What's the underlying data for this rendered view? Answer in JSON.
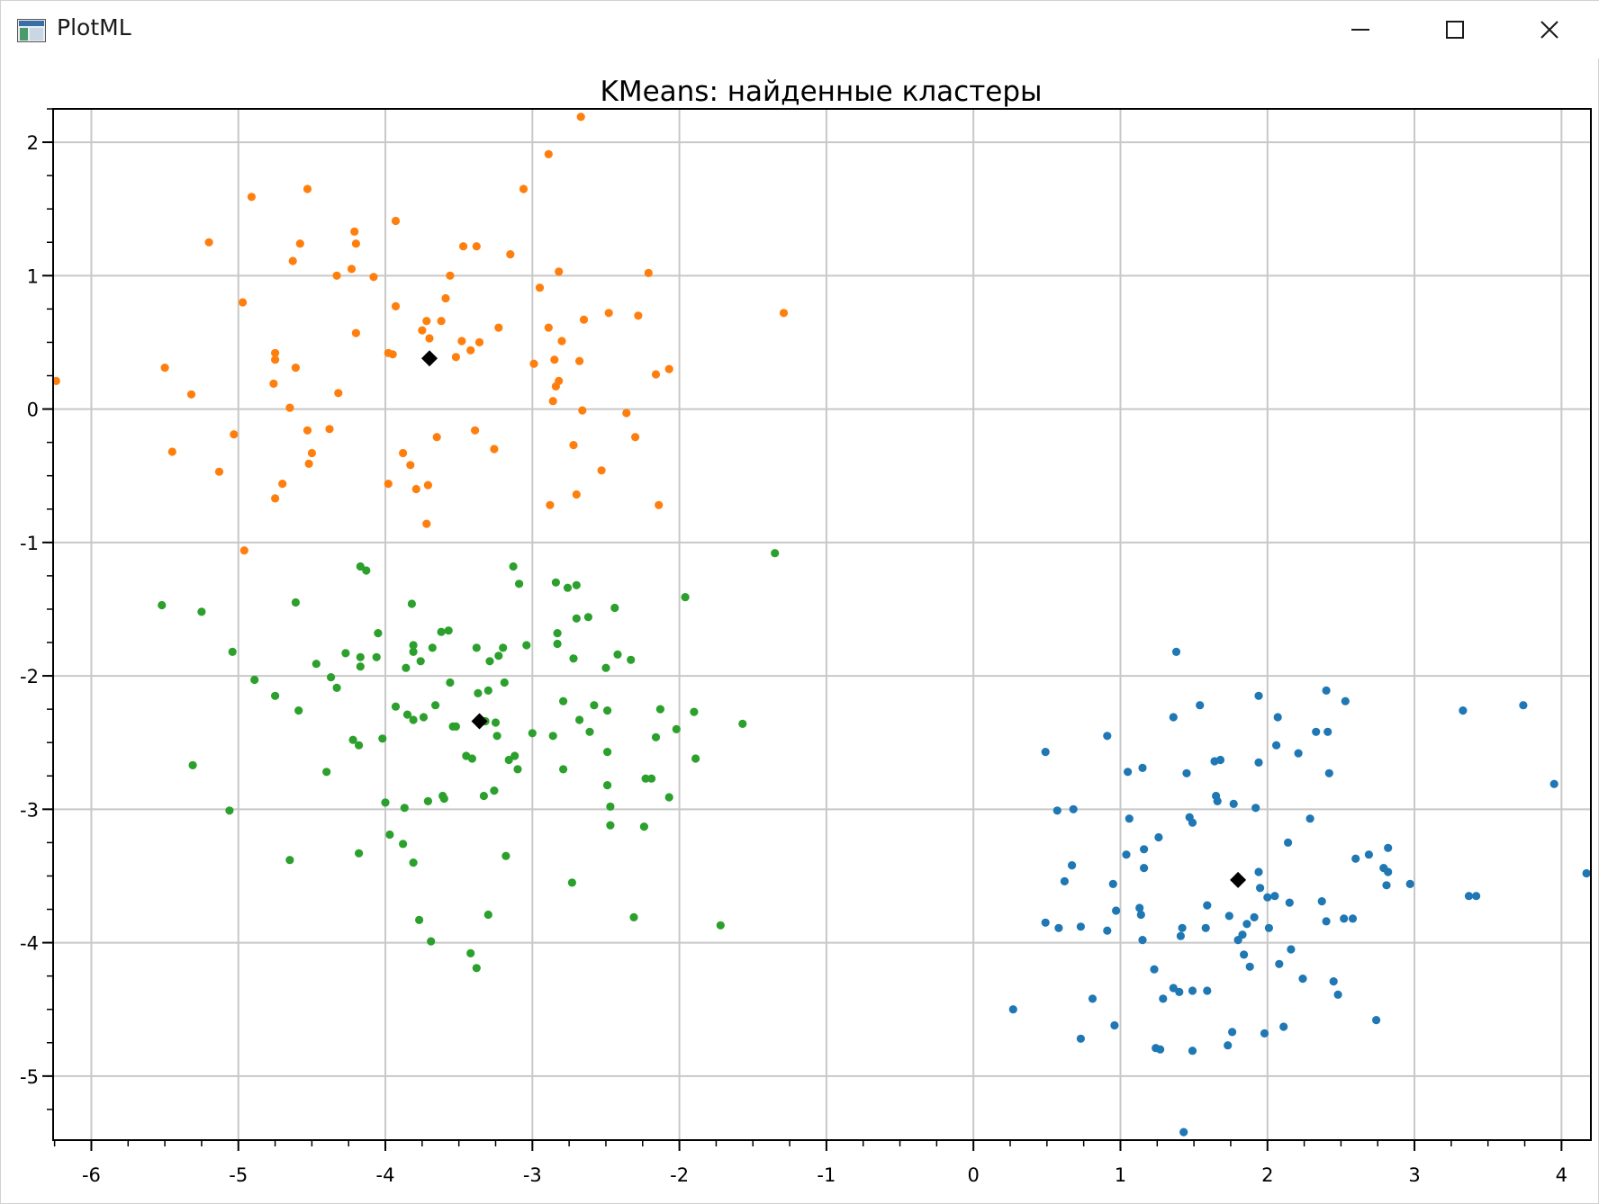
{
  "window": {
    "title": "PlotML",
    "icon": "chart-app-icon"
  },
  "controls": {
    "minimize": "minimize-icon",
    "maximize": "maximize-icon",
    "close": "close-icon"
  },
  "chart_data": {
    "type": "scatter",
    "title": "KMeans: найденные кластеры",
    "xlabel": "",
    "ylabel": "",
    "xlim": [
      -6.26,
      4.2
    ],
    "ylim": [
      -5.48,
      2.25
    ],
    "xticks": [
      -6,
      -5,
      -4,
      -3,
      -2,
      -1,
      0,
      1,
      2,
      3,
      4
    ],
    "yticks": [
      2,
      1,
      0,
      -1,
      -2,
      -3,
      -4,
      -5
    ],
    "grid": true,
    "legend": "none",
    "colors": {
      "blue": "#1f77b4",
      "orange": "#ff7f0e",
      "green": "#2ca02c",
      "centroid": "#000000"
    },
    "series": [
      {
        "color": "#1f77b4",
        "points": [
          [
            0.27,
            -4.5
          ],
          [
            0.49,
            -2.57
          ],
          [
            0.49,
            -3.85
          ],
          [
            0.57,
            -3.01
          ],
          [
            0.58,
            -3.89
          ],
          [
            0.62,
            -3.54
          ],
          [
            0.67,
            -3.42
          ],
          [
            0.68,
            -3.0
          ],
          [
            0.73,
            -4.72
          ],
          [
            0.73,
            -3.88
          ],
          [
            0.81,
            -4.42
          ],
          [
            0.91,
            -2.45
          ],
          [
            0.91,
            -3.91
          ],
          [
            0.95,
            -3.56
          ],
          [
            0.96,
            -4.62
          ],
          [
            0.97,
            -3.76
          ],
          [
            1.04,
            -3.34
          ],
          [
            1.05,
            -2.72
          ],
          [
            1.06,
            -3.07
          ],
          [
            1.13,
            -3.74
          ],
          [
            1.14,
            -3.79
          ],
          [
            1.15,
            -2.69
          ],
          [
            1.15,
            -3.98
          ],
          [
            1.16,
            -3.44
          ],
          [
            1.16,
            -3.3
          ],
          [
            1.23,
            -4.2
          ],
          [
            1.24,
            -4.79
          ],
          [
            1.26,
            -3.21
          ],
          [
            1.27,
            -4.8
          ],
          [
            1.29,
            -4.42
          ],
          [
            1.36,
            -4.34
          ],
          [
            1.36,
            -2.31
          ],
          [
            1.38,
            -1.82
          ],
          [
            1.4,
            -4.37
          ],
          [
            1.41,
            -3.95
          ],
          [
            1.42,
            -3.89
          ],
          [
            1.43,
            -5.42
          ],
          [
            1.45,
            -2.73
          ],
          [
            1.47,
            -3.06
          ],
          [
            1.49,
            -4.81
          ],
          [
            1.49,
            -3.1
          ],
          [
            1.49,
            -4.36
          ],
          [
            1.54,
            -2.22
          ],
          [
            1.58,
            -3.89
          ],
          [
            1.59,
            -3.72
          ],
          [
            1.59,
            -4.36
          ],
          [
            1.64,
            -2.64
          ],
          [
            1.65,
            -2.9
          ],
          [
            1.66,
            -2.94
          ],
          [
            1.68,
            -2.63
          ],
          [
            1.73,
            -4.77
          ],
          [
            1.74,
            -3.8
          ],
          [
            1.76,
            -4.67
          ],
          [
            1.77,
            -2.96
          ],
          [
            1.8,
            -3.98
          ],
          [
            1.83,
            -3.94
          ],
          [
            1.84,
            -4.09
          ],
          [
            1.86,
            -3.86
          ],
          [
            1.88,
            -4.18
          ],
          [
            1.91,
            -3.81
          ],
          [
            1.92,
            -2.99
          ],
          [
            1.94,
            -2.15
          ],
          [
            1.94,
            -2.65
          ],
          [
            1.94,
            -3.47
          ],
          [
            1.95,
            -3.59
          ],
          [
            1.98,
            -4.68
          ],
          [
            2.0,
            -3.66
          ],
          [
            2.01,
            -3.89
          ],
          [
            2.05,
            -3.65
          ],
          [
            2.06,
            -2.52
          ],
          [
            2.07,
            -2.31
          ],
          [
            2.08,
            -4.16
          ],
          [
            2.11,
            -4.63
          ],
          [
            2.14,
            -3.25
          ],
          [
            2.15,
            -3.7
          ],
          [
            2.16,
            -4.05
          ],
          [
            2.21,
            -2.58
          ],
          [
            2.24,
            -4.27
          ],
          [
            2.29,
            -3.07
          ],
          [
            2.33,
            -2.42
          ],
          [
            2.37,
            -3.69
          ],
          [
            2.4,
            -3.84
          ],
          [
            2.4,
            -2.11
          ],
          [
            2.41,
            -2.42
          ],
          [
            2.42,
            -2.73
          ],
          [
            2.45,
            -4.29
          ],
          [
            2.48,
            -4.39
          ],
          [
            2.52,
            -3.82
          ],
          [
            2.53,
            -2.19
          ],
          [
            2.58,
            -3.82
          ],
          [
            2.6,
            -3.37
          ],
          [
            2.69,
            -3.34
          ],
          [
            2.74,
            -4.58
          ],
          [
            2.79,
            -3.44
          ],
          [
            2.82,
            -3.47
          ],
          [
            2.82,
            -3.29
          ],
          [
            2.81,
            -3.57
          ],
          [
            2.97,
            -3.56
          ],
          [
            3.33,
            -2.26
          ],
          [
            3.37,
            -3.65
          ],
          [
            3.42,
            -3.65
          ],
          [
            3.74,
            -2.22
          ],
          [
            3.95,
            -2.81
          ],
          [
            4.17,
            -3.48
          ]
        ]
      },
      {
        "color": "#ff7f0e",
        "points": [
          [
            -6.24,
            0.21
          ],
          [
            -5.5,
            0.31
          ],
          [
            -5.45,
            -0.32
          ],
          [
            -5.32,
            0.11
          ],
          [
            -5.2,
            1.25
          ],
          [
            -5.13,
            -0.47
          ],
          [
            -5.03,
            -0.19
          ],
          [
            -4.97,
            0.8
          ],
          [
            -4.96,
            -1.06
          ],
          [
            -4.91,
            1.59
          ],
          [
            -4.76,
            0.19
          ],
          [
            -4.75,
            0.42
          ],
          [
            -4.75,
            0.37
          ],
          [
            -4.75,
            -0.67
          ],
          [
            -4.7,
            -0.56
          ],
          [
            -4.65,
            0.01
          ],
          [
            -4.63,
            1.11
          ],
          [
            -4.61,
            0.31
          ],
          [
            -4.58,
            1.24
          ],
          [
            -4.53,
            -0.16
          ],
          [
            -4.53,
            1.65
          ],
          [
            -4.52,
            -0.41
          ],
          [
            -4.5,
            -0.33
          ],
          [
            -4.38,
            -0.15
          ],
          [
            -4.33,
            1.0
          ],
          [
            -4.32,
            0.12
          ],
          [
            -4.23,
            1.05
          ],
          [
            -4.21,
            1.33
          ],
          [
            -4.2,
            0.57
          ],
          [
            -4.2,
            1.24
          ],
          [
            -4.08,
            0.99
          ],
          [
            -3.98,
            -0.56
          ],
          [
            -3.98,
            0.42
          ],
          [
            -3.95,
            0.41
          ],
          [
            -3.93,
            0.77
          ],
          [
            -3.93,
            1.41
          ],
          [
            -3.88,
            -0.33
          ],
          [
            -3.83,
            -0.42
          ],
          [
            -3.79,
            -0.6
          ],
          [
            -3.75,
            0.59
          ],
          [
            -3.72,
            0.66
          ],
          [
            -3.71,
            -0.57
          ],
          [
            -3.72,
            -0.86
          ],
          [
            -3.7,
            0.53
          ],
          [
            -3.65,
            -0.21
          ],
          [
            -3.62,
            0.66
          ],
          [
            -3.59,
            0.83
          ],
          [
            -3.56,
            1.0
          ],
          [
            -3.52,
            0.39
          ],
          [
            -3.48,
            0.51
          ],
          [
            -3.47,
            1.22
          ],
          [
            -3.42,
            0.44
          ],
          [
            -3.39,
            -0.16
          ],
          [
            -3.38,
            1.22
          ],
          [
            -3.36,
            0.5
          ],
          [
            -3.26,
            -0.3
          ],
          [
            -3.23,
            0.61
          ],
          [
            -3.15,
            1.16
          ],
          [
            -3.06,
            1.65
          ],
          [
            -2.99,
            0.34
          ],
          [
            -2.95,
            0.91
          ],
          [
            -2.89,
            0.61
          ],
          [
            -2.89,
            1.91
          ],
          [
            -2.88,
            -0.72
          ],
          [
            -2.86,
            0.06
          ],
          [
            -2.85,
            0.37
          ],
          [
            -2.84,
            0.17
          ],
          [
            -2.82,
            1.03
          ],
          [
            -2.82,
            0.21
          ],
          [
            -2.8,
            0.51
          ],
          [
            -2.72,
            -0.27
          ],
          [
            -2.7,
            -0.64
          ],
          [
            -2.68,
            0.36
          ],
          [
            -2.67,
            2.19
          ],
          [
            -2.66,
            -0.01
          ],
          [
            -2.65,
            0.67
          ],
          [
            -2.53,
            -0.46
          ],
          [
            -2.48,
            0.72
          ],
          [
            -2.36,
            -0.03
          ],
          [
            -2.3,
            -0.21
          ],
          [
            -2.28,
            0.7
          ],
          [
            -2.21,
            1.02
          ],
          [
            -2.16,
            0.26
          ],
          [
            -2.14,
            -0.72
          ],
          [
            -2.07,
            0.3
          ],
          [
            -1.29,
            0.72
          ]
        ]
      },
      {
        "color": "#2ca02c",
        "points": [
          [
            -5.52,
            -1.47
          ],
          [
            -5.31,
            -2.67
          ],
          [
            -5.25,
            -1.52
          ],
          [
            -5.06,
            -3.01
          ],
          [
            -5.04,
            -1.82
          ],
          [
            -4.89,
            -2.03
          ],
          [
            -4.75,
            -2.15
          ],
          [
            -4.65,
            -3.38
          ],
          [
            -4.61,
            -1.45
          ],
          [
            -4.59,
            -2.26
          ],
          [
            -4.47,
            -1.91
          ],
          [
            -4.4,
            -2.72
          ],
          [
            -4.37,
            -2.01
          ],
          [
            -4.33,
            -2.09
          ],
          [
            -4.27,
            -1.83
          ],
          [
            -4.22,
            -2.48
          ],
          [
            -4.18,
            -2.52
          ],
          [
            -4.17,
            -1.86
          ],
          [
            -4.18,
            -3.33
          ],
          [
            -4.17,
            -1.18
          ],
          [
            -4.17,
            -1.93
          ],
          [
            -4.13,
            -1.21
          ],
          [
            -4.06,
            -1.86
          ],
          [
            -4.05,
            -1.68
          ],
          [
            -4.02,
            -2.47
          ],
          [
            -4.0,
            -2.95
          ],
          [
            -3.97,
            -3.19
          ],
          [
            -3.93,
            -2.23
          ],
          [
            -3.88,
            -3.26
          ],
          [
            -3.87,
            -2.99
          ],
          [
            -3.86,
            -1.94
          ],
          [
            -3.85,
            -2.29
          ],
          [
            -3.82,
            -1.46
          ],
          [
            -3.81,
            -3.4
          ],
          [
            -3.81,
            -1.77
          ],
          [
            -3.81,
            -1.82
          ],
          [
            -3.81,
            -2.33
          ],
          [
            -3.77,
            -3.83
          ],
          [
            -3.76,
            -1.89
          ],
          [
            -3.74,
            -2.31
          ],
          [
            -3.71,
            -2.94
          ],
          [
            -3.69,
            -3.99
          ],
          [
            -3.68,
            -1.79
          ],
          [
            -3.66,
            -2.22
          ],
          [
            -3.62,
            -1.67
          ],
          [
            -3.61,
            -2.9
          ],
          [
            -3.6,
            -2.92
          ],
          [
            -3.57,
            -1.66
          ],
          [
            -3.56,
            -2.05
          ],
          [
            -3.54,
            -2.38
          ],
          [
            -3.52,
            -2.38
          ],
          [
            -3.45,
            -2.6
          ],
          [
            -3.41,
            -2.62
          ],
          [
            -3.42,
            -4.08
          ],
          [
            -3.38,
            -4.19
          ],
          [
            -3.38,
            -1.79
          ],
          [
            -3.37,
            -2.13
          ],
          [
            -3.33,
            -2.9
          ],
          [
            -3.32,
            -2.34
          ],
          [
            -3.3,
            -3.79
          ],
          [
            -3.3,
            -2.11
          ],
          [
            -3.29,
            -1.89
          ],
          [
            -3.26,
            -2.86
          ],
          [
            -3.25,
            -2.35
          ],
          [
            -3.24,
            -2.45
          ],
          [
            -3.23,
            -1.85
          ],
          [
            -3.2,
            -1.79
          ],
          [
            -3.19,
            -2.05
          ],
          [
            -3.18,
            -3.35
          ],
          [
            -3.16,
            -2.63
          ],
          [
            -3.13,
            -1.18
          ],
          [
            -3.12,
            -2.6
          ],
          [
            -3.1,
            -2.7
          ],
          [
            -3.09,
            -1.31
          ],
          [
            -3.04,
            -1.77
          ],
          [
            -3.0,
            -2.43
          ],
          [
            -2.86,
            -2.45
          ],
          [
            -2.84,
            -1.3
          ],
          [
            -2.83,
            -1.68
          ],
          [
            -2.83,
            -1.76
          ],
          [
            -2.79,
            -2.19
          ],
          [
            -2.79,
            -2.7
          ],
          [
            -2.76,
            -1.34
          ],
          [
            -2.73,
            -3.55
          ],
          [
            -2.72,
            -1.87
          ],
          [
            -2.7,
            -1.32
          ],
          [
            -2.7,
            -1.57
          ],
          [
            -2.68,
            -2.33
          ],
          [
            -2.61,
            -2.42
          ],
          [
            -2.62,
            -1.56
          ],
          [
            -2.58,
            -2.22
          ],
          [
            -2.5,
            -1.94
          ],
          [
            -2.49,
            -2.57
          ],
          [
            -2.49,
            -2.82
          ],
          [
            -2.49,
            -2.26
          ],
          [
            -2.47,
            -3.12
          ],
          [
            -2.47,
            -2.98
          ],
          [
            -2.44,
            -1.49
          ],
          [
            -2.42,
            -1.84
          ],
          [
            -2.33,
            -1.88
          ],
          [
            -2.31,
            -3.81
          ],
          [
            -2.24,
            -3.13
          ],
          [
            -2.23,
            -2.77
          ],
          [
            -2.19,
            -2.77
          ],
          [
            -2.16,
            -2.46
          ],
          [
            -2.13,
            -2.25
          ],
          [
            -2.07,
            -2.91
          ],
          [
            -2.02,
            -2.4
          ],
          [
            -1.96,
            -1.41
          ],
          [
            -1.9,
            -2.27
          ],
          [
            -1.89,
            -2.62
          ],
          [
            -1.72,
            -3.87
          ],
          [
            -1.57,
            -2.36
          ],
          [
            -1.35,
            -1.08
          ]
        ]
      }
    ],
    "centroids": [
      [
        -3.7,
        0.38
      ],
      [
        -3.36,
        -2.34
      ],
      [
        1.8,
        -3.53
      ]
    ]
  }
}
